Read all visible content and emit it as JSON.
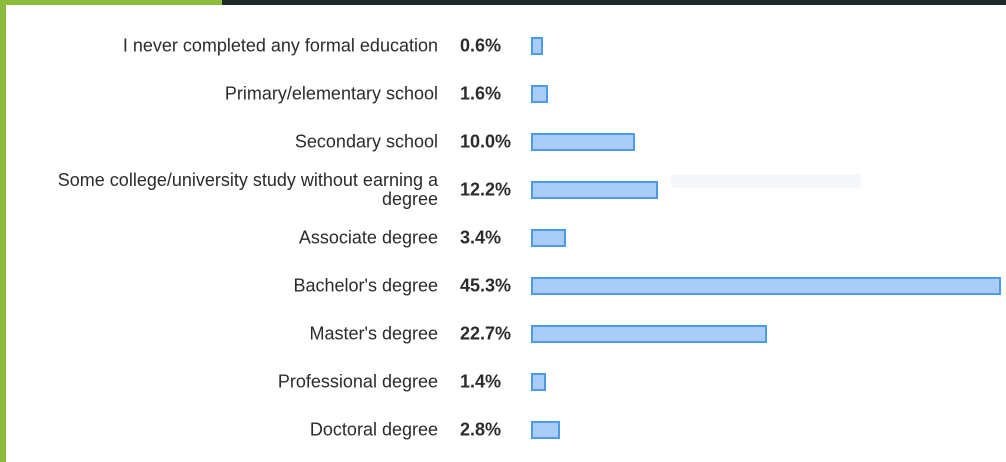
{
  "chart_data": {
    "type": "bar",
    "orientation": "horizontal",
    "categories": [
      "I never completed any formal education",
      "Primary/elementary school",
      "Secondary school",
      "Some college/university study without earning a degree",
      "Associate degree",
      "Bachelor's degree",
      "Master's degree",
      "Professional degree",
      "Doctoral degree"
    ],
    "values": [
      0.6,
      1.6,
      10.0,
      12.2,
      3.4,
      45.3,
      22.7,
      1.4,
      2.8
    ],
    "value_labels": [
      "0.6%",
      "1.6%",
      "10.0%",
      "12.2%",
      "3.4%",
      "45.3%",
      "22.7%",
      "1.4%",
      "2.8%"
    ],
    "unit": "%",
    "xlim": [
      0,
      45.3
    ],
    "grid": false,
    "colors": {
      "bar_fill": "#a9cdf7",
      "bar_border": "#4a9be8",
      "text": "#2b2b2b",
      "accent": "#8dbb3c"
    }
  }
}
